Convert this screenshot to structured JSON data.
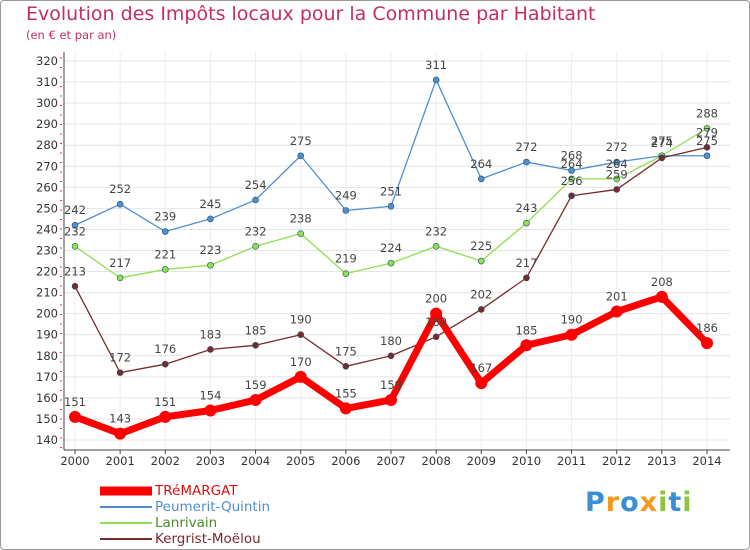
{
  "header": {
    "title": "Evolution des Impôts locaux pour la Commune par Habitant",
    "subtitle": "(en € et par an)"
  },
  "logo": {
    "text": "Proxiti",
    "letters": [
      {
        "ch": "P",
        "color": "#3a8fd4"
      },
      {
        "ch": "r",
        "color": "#f39a1c"
      },
      {
        "ch": "o",
        "color": "#3a8fd4"
      },
      {
        "ch": "x",
        "color": "#f39a1c"
      },
      {
        "ch": "i",
        "color": "#8cc63f"
      },
      {
        "ch": "t",
        "color": "#3a8fd4"
      },
      {
        "ch": "i",
        "color": "#8cc63f"
      }
    ]
  },
  "chart_data": {
    "type": "line",
    "title": "Evolution des Impôts locaux pour la Commune par Habitant",
    "subtitle": "(en € et par an)",
    "x": [
      "2000",
      "2001",
      "2002",
      "2003",
      "2004",
      "2005",
      "2006",
      "2007",
      "2008",
      "2009",
      "2010",
      "2011",
      "2012",
      "2013",
      "2014"
    ],
    "ylim": [
      140,
      320
    ],
    "yticks": [
      140,
      150,
      160,
      170,
      180,
      190,
      200,
      210,
      220,
      230,
      240,
      250,
      260,
      270,
      280,
      290,
      300,
      310,
      320
    ],
    "grid": true,
    "legend": "bottom-left",
    "series": [
      {
        "name": "TRéMARGAT",
        "color": "#ff0000",
        "values": [
          151,
          143,
          151,
          154,
          159,
          170,
          155,
          159,
          200,
          167,
          185,
          190,
          201,
          208,
          186
        ]
      },
      {
        "name": "Peumerit-Quintin",
        "color": "#4e8fd0",
        "values": [
          242,
          252,
          239,
          245,
          254,
          275,
          249,
          251,
          311,
          264,
          272,
          268,
          272,
          275,
          275
        ]
      },
      {
        "name": "Lanrivain",
        "color": "#8ee050",
        "values": [
          232,
          217,
          221,
          223,
          232,
          238,
          219,
          224,
          232,
          225,
          243,
          264,
          264,
          275,
          288
        ]
      },
      {
        "name": "Kergrist-Moëlou",
        "color": "#7a2a2a",
        "values": [
          213,
          172,
          176,
          183,
          185,
          190,
          175,
          180,
          189,
          202,
          217,
          256,
          259,
          274,
          279
        ]
      }
    ]
  }
}
